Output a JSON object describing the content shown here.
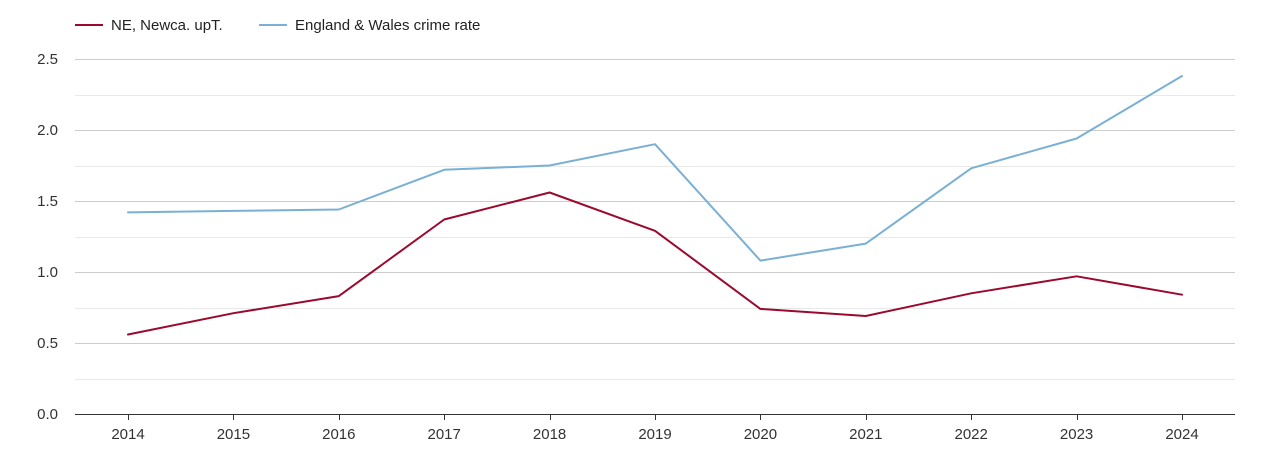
{
  "chart_data": {
    "type": "line",
    "x": [
      "2014",
      "2015",
      "2016",
      "2017",
      "2018",
      "2019",
      "2020",
      "2021",
      "2022",
      "2023",
      "2024"
    ],
    "series": [
      {
        "name": "NE, Newca. upT.",
        "color": "#9b0a2e",
        "values": [
          0.56,
          0.71,
          0.83,
          1.37,
          1.56,
          1.29,
          0.74,
          0.69,
          0.85,
          0.97,
          0.84
        ]
      },
      {
        "name": "England & Wales crime rate",
        "color": "#7ab0d4",
        "values": [
          1.42,
          1.43,
          1.44,
          1.72,
          1.75,
          1.9,
          1.08,
          1.2,
          1.73,
          1.94,
          2.38
        ]
      }
    ],
    "yticks": [
      "0.0",
      "0.5",
      "1.0",
      "1.5",
      "2.0",
      "2.5"
    ],
    "ylim": [
      0,
      2.5
    ],
    "grid": true,
    "legend_position": "top-left"
  }
}
